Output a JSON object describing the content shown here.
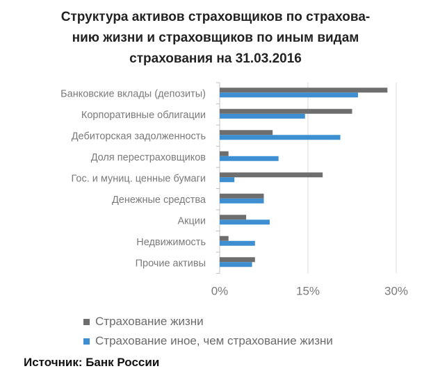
{
  "title_lines": [
    "Структура активов страховщиков по страхова-",
    "нию жизни и страховщиков по иным видам",
    "страхования на 31.03.2016"
  ],
  "source": "Источник: Банк России",
  "colors": {
    "life": "#6e6e6e",
    "other": "#3d8fd1",
    "axis_text": "#7a7a7a",
    "gridline": "#d9d9d9"
  },
  "chart_data": {
    "type": "bar",
    "orientation": "horizontal",
    "categories": [
      "Банковские вклады (депозиты)",
      "Корпоративные облигации",
      "Дебиторская задолженность",
      "Доля перестраховщиков",
      "Гос. и муниц. ценные бумаги",
      "Денежные средства",
      "Акции",
      "Недвижимость",
      "Прочие активы"
    ],
    "series": [
      {
        "name": "Страхование жизни",
        "values": [
          28.5,
          22.5,
          9.0,
          1.5,
          17.5,
          7.5,
          4.5,
          1.5,
          6.0
        ]
      },
      {
        "name": "Страхование иное, чем страхование жизни",
        "values": [
          23.5,
          14.5,
          20.5,
          10.0,
          2.5,
          7.5,
          8.5,
          6.0,
          5.5
        ]
      }
    ],
    "xlim": [
      0,
      30
    ],
    "xticks": [
      "0%",
      "15%",
      "30%"
    ],
    "xtick_values": [
      0,
      15,
      30
    ],
    "grid": true,
    "legend_position": "bottom"
  }
}
